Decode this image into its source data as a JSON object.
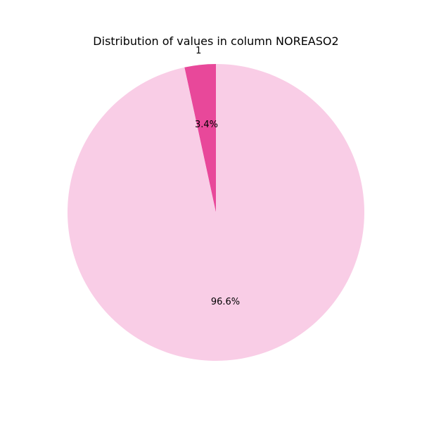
{
  "chart_data": {
    "type": "pie",
    "title": "Distribution of values in column NOREASO2",
    "slices": [
      {
        "label": "1",
        "value": 3.4,
        "pct_label": "3.4%",
        "color": "#e8489a"
      },
      {
        "label": "",
        "value": 96.6,
        "pct_label": "96.6%",
        "color": "#f9cde6"
      }
    ],
    "start_angle_deg": 90,
    "direction": "counterclockwise"
  }
}
